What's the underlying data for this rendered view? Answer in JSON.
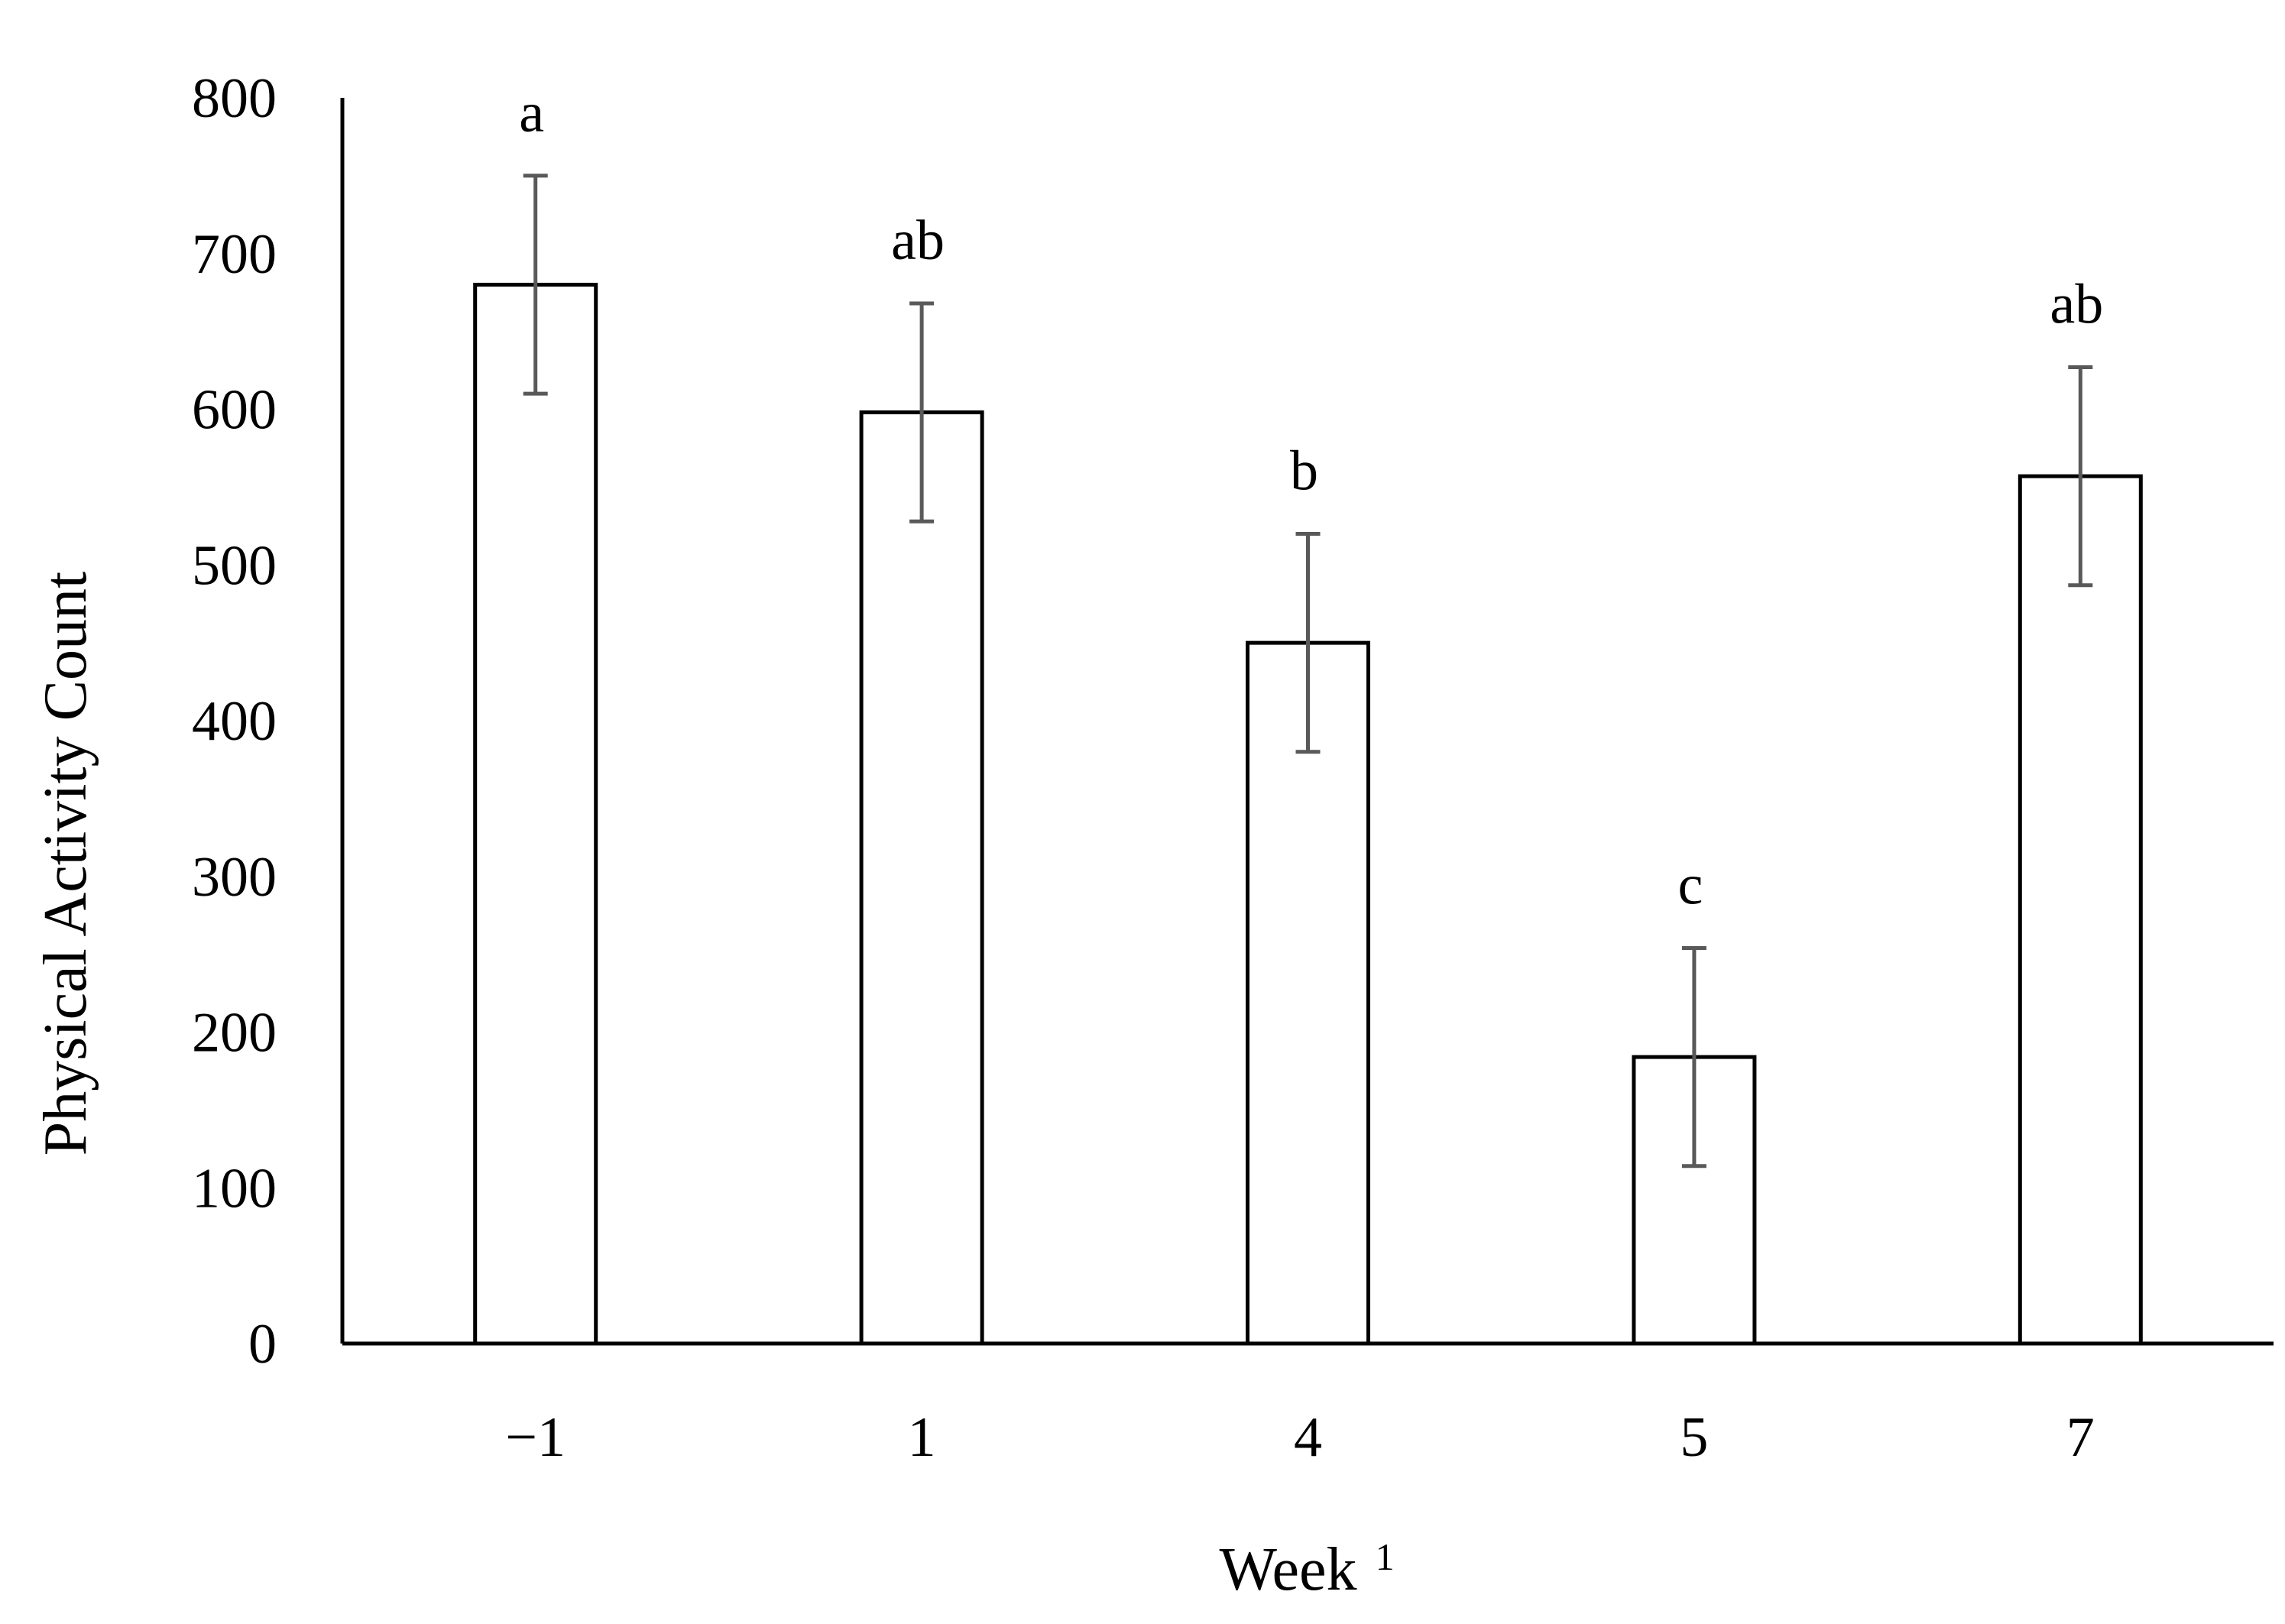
{
  "chart_data": {
    "type": "bar",
    "categories": [
      "−1",
      "1",
      "4",
      "5",
      "7"
    ],
    "values": [
      680,
      598,
      450,
      184,
      557
    ],
    "error": [
      70,
      70,
      70,
      70,
      70
    ],
    "significance": [
      "a",
      "ab",
      "b",
      "c",
      "ab"
    ],
    "title": "",
    "xlabel": "Week",
    "xlabel_superscript": "1",
    "ylabel": "Physical Activity Count",
    "ylim": [
      0,
      800
    ],
    "yticks": [
      0,
      100,
      200,
      300,
      400,
      500,
      600,
      700,
      800
    ],
    "grid": false,
    "legend": "none",
    "colors": {
      "bar_fill": "#ffffff",
      "bar_stroke": "#000000",
      "error_bar": "#595959",
      "axis": "#000000"
    }
  }
}
